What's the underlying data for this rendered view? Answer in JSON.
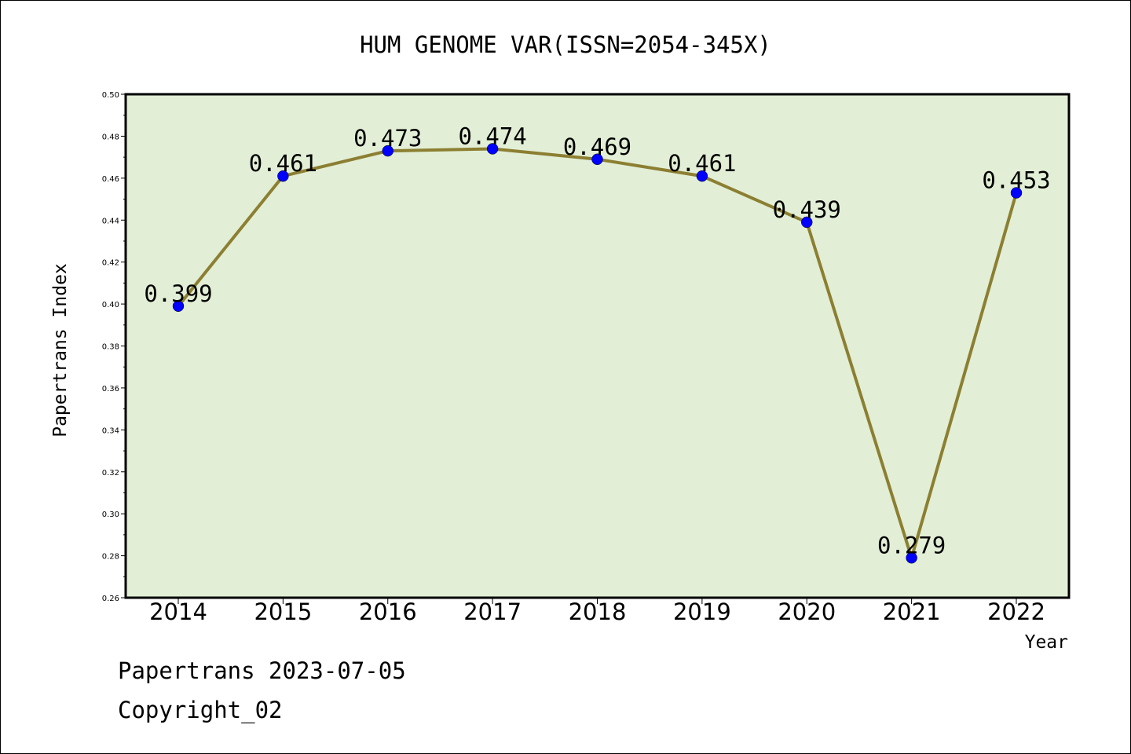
{
  "footer": {
    "line1": "Papertrans 2023-07-05",
    "line2": "Copyright_02"
  },
  "chart_data": {
    "type": "line",
    "title": "HUM GENOME VAR(ISSN=2054-345X)",
    "xlabel": "Year",
    "ylabel": "Papertrans Index",
    "categories": [
      "2014",
      "2015",
      "2016",
      "2017",
      "2018",
      "2019",
      "2020",
      "2021",
      "2022"
    ],
    "values": [
      0.399,
      0.461,
      0.473,
      0.474,
      0.469,
      0.461,
      0.439,
      0.279,
      0.453
    ],
    "data_labels": [
      "0.399",
      "0.461",
      "0.473",
      "0.474",
      "0.469",
      "0.461",
      "0.439",
      "0.279",
      "0.453"
    ],
    "ylim": [
      0.26,
      0.5
    ],
    "yticks": [
      "0.26",
      "0.28",
      "0.30",
      "0.32",
      "0.34",
      "0.36",
      "0.38",
      "0.40",
      "0.42",
      "0.44",
      "0.46",
      "0.48",
      "0.50"
    ],
    "grid": false,
    "legend": "none",
    "colors": {
      "plot_background": "#e2efd6",
      "line": "#8c7f32",
      "marker": "#0000ff"
    }
  }
}
